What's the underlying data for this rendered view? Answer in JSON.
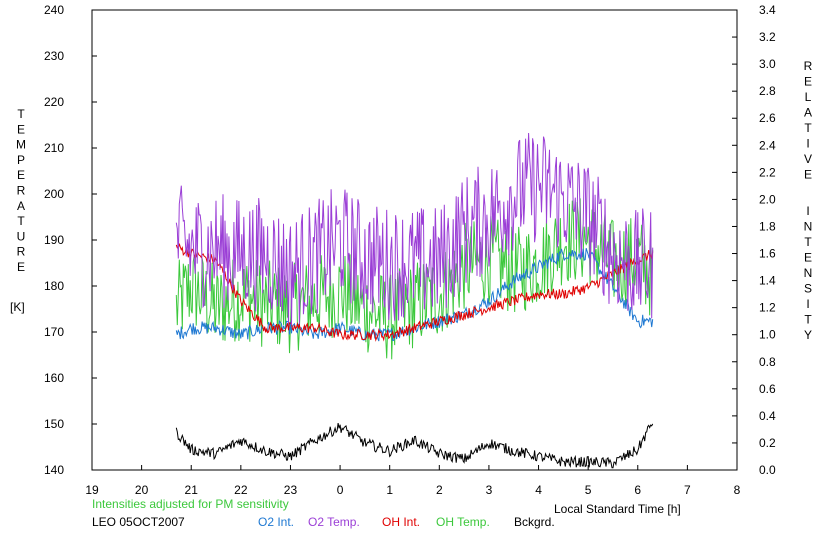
{
  "chart_data": {
    "type": "line",
    "left_axis": {
      "label_letters": [
        "T",
        "E",
        "M",
        "P",
        "E",
        "R",
        "A",
        "T",
        "U",
        "R",
        "E"
      ],
      "unit": "[K]",
      "ylim": [
        140,
        240
      ],
      "ticks": [
        "140",
        "150",
        "160",
        "170",
        "180",
        "190",
        "200",
        "210",
        "220",
        "230",
        "240"
      ]
    },
    "right_axis": {
      "label_word1": [
        "R",
        "E",
        "L",
        "A",
        "T",
        "I",
        "V",
        "E"
      ],
      "label_word2": [
        "I",
        "N",
        "T",
        "E",
        "N",
        "S",
        "I",
        "T",
        "Y"
      ],
      "ylim": [
        0.0,
        3.4
      ],
      "ticks": [
        "0.0",
        "0.2",
        "0.4",
        "0.6",
        "0.8",
        "1.0",
        "1.2",
        "1.4",
        "1.6",
        "1.8",
        "2.0",
        "2.2",
        "2.4",
        "2.6",
        "2.8",
        "3.0",
        "3.2",
        "3.4"
      ]
    },
    "x_axis": {
      "label": "Local Standard Time [h]",
      "xlim": [
        19,
        32
      ],
      "tick_labels": [
        "19",
        "20",
        "21",
        "22",
        "23",
        "0",
        "1",
        "2",
        "3",
        "4",
        "5",
        "6",
        "7",
        "8"
      ]
    },
    "note": "Intensities adjusted for PM sensitivity",
    "station": "LEO 05OCT2007",
    "grid": false,
    "series": [
      {
        "name": "O2 Int.",
        "color": "#1e78d2",
        "axis": "right",
        "x": [
          20.7,
          21.0,
          21.5,
          22.0,
          22.5,
          23.0,
          23.5,
          24.0,
          24.5,
          25.0,
          25.5,
          26.0,
          26.5,
          27.0,
          27.5,
          28.0,
          28.5,
          29.0,
          29.5,
          30.0,
          30.3
        ],
        "y": [
          1.0,
          1.05,
          1.05,
          1.0,
          1.05,
          1.05,
          1.0,
          1.05,
          1.0,
          1.0,
          1.05,
          1.1,
          1.15,
          1.25,
          1.4,
          1.5,
          1.6,
          1.6,
          1.35,
          1.1,
          1.1
        ],
        "noise": 0.05
      },
      {
        "name": "O2 Temp.",
        "color": "#9b3fd6",
        "axis": "left",
        "x": [
          20.7,
          21.0,
          21.5,
          22.0,
          22.5,
          23.0,
          23.5,
          24.0,
          24.5,
          25.0,
          25.5,
          26.0,
          26.5,
          27.0,
          27.5,
          28.0,
          28.5,
          29.0,
          29.5,
          30.0,
          30.3
        ],
        "y": [
          190,
          188,
          188,
          187,
          187,
          183,
          186,
          190,
          186,
          185,
          185,
          185,
          192,
          195,
          200,
          202,
          199,
          195,
          187,
          184,
          185
        ],
        "noise": 9
      },
      {
        "name": "OH Int.",
        "color": "#e00000",
        "axis": "right",
        "x": [
          20.7,
          21.0,
          21.5,
          22.0,
          22.5,
          23.0,
          23.5,
          24.0,
          24.5,
          25.0,
          25.5,
          26.0,
          26.5,
          27.0,
          27.5,
          28.0,
          28.5,
          29.0,
          29.5,
          30.0,
          30.3
        ],
        "y": [
          1.65,
          1.6,
          1.55,
          1.25,
          1.05,
          1.05,
          1.05,
          1.0,
          1.0,
          1.0,
          1.05,
          1.1,
          1.15,
          1.2,
          1.25,
          1.3,
          1.3,
          1.35,
          1.45,
          1.55,
          1.6
        ],
        "noise": 0.04
      },
      {
        "name": "OH Temp.",
        "color": "#3cc83c",
        "axis": "left",
        "x": [
          20.7,
          21.0,
          21.5,
          22.0,
          22.5,
          23.0,
          23.5,
          24.0,
          24.5,
          25.0,
          25.5,
          26.0,
          26.5,
          27.0,
          27.5,
          28.0,
          28.5,
          29.0,
          29.5,
          30.0,
          30.3
        ],
        "y": [
          175,
          180,
          175,
          178,
          176,
          175,
          177,
          179,
          175,
          173,
          176,
          178,
          184,
          186,
          183,
          185,
          190,
          190,
          185,
          186,
          182
        ],
        "noise": 7
      },
      {
        "name": "Bckgrd.",
        "color": "#000000",
        "axis": "right",
        "x": [
          20.7,
          21.0,
          21.5,
          22.0,
          22.5,
          23.0,
          23.5,
          24.0,
          24.5,
          25.0,
          25.5,
          26.0,
          26.5,
          27.0,
          27.5,
          28.0,
          28.5,
          29.0,
          29.5,
          30.0,
          30.3
        ],
        "y": [
          0.28,
          0.15,
          0.12,
          0.22,
          0.14,
          0.1,
          0.22,
          0.32,
          0.2,
          0.14,
          0.22,
          0.12,
          0.08,
          0.2,
          0.14,
          0.1,
          0.06,
          0.06,
          0.05,
          0.15,
          0.36
        ],
        "noise": 0.04
      }
    ]
  }
}
